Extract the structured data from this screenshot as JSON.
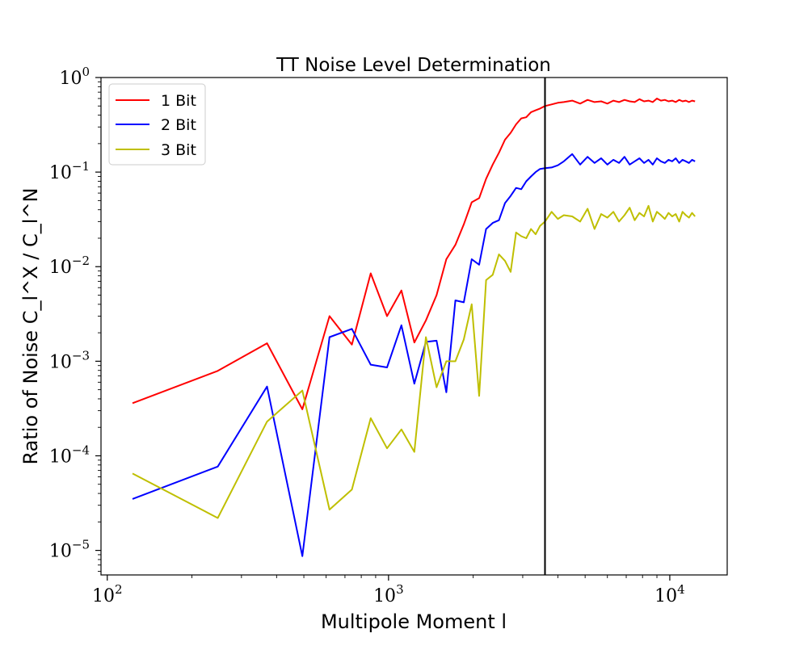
{
  "chart_data": {
    "type": "line",
    "title": "TT Noise Level Determination",
    "xlabel": "Multipole Moment l",
    "ylabel": "Ratio of Noise C_l^X / C_l^N",
    "x_scale": "log",
    "y_scale": "log",
    "xlim": [
      95,
      16000
    ],
    "ylim": [
      5.5e-06,
      1.0
    ],
    "x_ticks": [
      {
        "value": 100,
        "base": "10",
        "exp": "2"
      },
      {
        "value": 1000,
        "base": "10",
        "exp": "3"
      },
      {
        "value": 10000,
        "base": "10",
        "exp": "4"
      }
    ],
    "y_ticks": [
      {
        "value": 1e-05,
        "base": "10",
        "exp": "−5"
      },
      {
        "value": 0.0001,
        "base": "10",
        "exp": "−4"
      },
      {
        "value": 0.001,
        "base": "10",
        "exp": "−3"
      },
      {
        "value": 0.01,
        "base": "10",
        "exp": "−2"
      },
      {
        "value": 0.1,
        "base": "10",
        "exp": "−1"
      },
      {
        "value": 1,
        "base": "10",
        "exp": "0"
      }
    ],
    "vline": {
      "x": 3600,
      "color": "#000000"
    },
    "legend_position": "top-left",
    "grid": false,
    "series": [
      {
        "name": "1 Bit",
        "color": "#ff0000",
        "x": [
          123,
          247,
          370,
          494,
          617,
          741,
          864,
          988,
          1111,
          1235,
          1358,
          1482,
          1605,
          1729,
          1852,
          1976,
          2100,
          2223,
          2347,
          2470,
          2594,
          2717,
          2841,
          2964,
          3088,
          3211,
          3335,
          3458,
          3600,
          3800,
          4000,
          4200,
          4500,
          4800,
          5100,
          5400,
          5700,
          6000,
          6300,
          6600,
          6900,
          7200,
          7500,
          7800,
          8100,
          8400,
          8700,
          9000,
          9300,
          9600,
          9900,
          10200,
          10500,
          10800,
          11100,
          11400,
          11700,
          12000,
          12300
        ],
        "values": [
          0.00036,
          0.00079,
          0.00155,
          0.00031,
          0.003,
          0.0015,
          0.0085,
          0.003,
          0.0056,
          0.00158,
          0.0027,
          0.005,
          0.012,
          0.017,
          0.028,
          0.048,
          0.053,
          0.085,
          0.12,
          0.16,
          0.22,
          0.26,
          0.32,
          0.37,
          0.38,
          0.43,
          0.45,
          0.47,
          0.5,
          0.52,
          0.54,
          0.55,
          0.57,
          0.53,
          0.58,
          0.55,
          0.56,
          0.53,
          0.57,
          0.55,
          0.58,
          0.56,
          0.55,
          0.59,
          0.56,
          0.57,
          0.55,
          0.6,
          0.57,
          0.58,
          0.56,
          0.57,
          0.55,
          0.58,
          0.56,
          0.57,
          0.55,
          0.57,
          0.56
        ]
      },
      {
        "name": "2 Bit",
        "color": "#0000ff",
        "x": [
          123,
          247,
          370,
          494,
          617,
          741,
          864,
          988,
          1111,
          1235,
          1358,
          1482,
          1605,
          1729,
          1852,
          1976,
          2100,
          2223,
          2347,
          2470,
          2594,
          2717,
          2841,
          2964,
          3088,
          3211,
          3335,
          3458,
          3600,
          3800,
          4000,
          4200,
          4500,
          4800,
          5100,
          5400,
          5700,
          6000,
          6300,
          6600,
          6900,
          7200,
          7500,
          7800,
          8100,
          8400,
          8700,
          9000,
          9300,
          9600,
          9900,
          10200,
          10500,
          10800,
          11100,
          11400,
          11700,
          12000,
          12300
        ],
        "values": [
          3.5e-05,
          7.7e-05,
          0.00054,
          8.7e-06,
          0.0018,
          0.0022,
          0.00092,
          0.00086,
          0.0024,
          0.00058,
          0.0016,
          0.00165,
          0.00047,
          0.0044,
          0.0042,
          0.012,
          0.0105,
          0.025,
          0.029,
          0.031,
          0.047,
          0.056,
          0.068,
          0.066,
          0.08,
          0.09,
          0.1,
          0.108,
          0.11,
          0.112,
          0.118,
          0.13,
          0.155,
          0.12,
          0.145,
          0.125,
          0.14,
          0.12,
          0.135,
          0.125,
          0.145,
          0.12,
          0.13,
          0.14,
          0.125,
          0.135,
          0.12,
          0.14,
          0.13,
          0.125,
          0.135,
          0.13,
          0.14,
          0.125,
          0.135,
          0.13,
          0.125,
          0.135,
          0.13
        ]
      },
      {
        "name": "3 Bit",
        "color": "#bfbf00",
        "x": [
          123,
          247,
          370,
          494,
          617,
          741,
          864,
          988,
          1111,
          1235,
          1358,
          1482,
          1605,
          1729,
          1852,
          1976,
          2100,
          2223,
          2347,
          2470,
          2594,
          2717,
          2841,
          2964,
          3088,
          3211,
          3335,
          3458,
          3600,
          3800,
          4000,
          4200,
          4500,
          4800,
          5100,
          5400,
          5700,
          6000,
          6300,
          6600,
          6900,
          7200,
          7500,
          7800,
          8100,
          8400,
          8700,
          9000,
          9300,
          9600,
          9900,
          10200,
          10500,
          10800,
          11100,
          11400,
          11700,
          12000,
          12300
        ],
        "values": [
          6.5e-05,
          2.2e-05,
          0.00023,
          0.00049,
          2.7e-05,
          4.4e-05,
          0.00025,
          0.00012,
          0.00019,
          0.00011,
          0.0018,
          0.00053,
          0.001,
          0.001,
          0.0017,
          0.004,
          0.00043,
          0.0072,
          0.0082,
          0.0135,
          0.0115,
          0.0088,
          0.023,
          0.021,
          0.02,
          0.025,
          0.022,
          0.027,
          0.03,
          0.038,
          0.032,
          0.035,
          0.034,
          0.03,
          0.041,
          0.025,
          0.036,
          0.033,
          0.038,
          0.03,
          0.035,
          0.042,
          0.031,
          0.037,
          0.034,
          0.044,
          0.03,
          0.038,
          0.035,
          0.032,
          0.037,
          0.034,
          0.036,
          0.03,
          0.038,
          0.035,
          0.033,
          0.037,
          0.034
        ]
      }
    ]
  }
}
